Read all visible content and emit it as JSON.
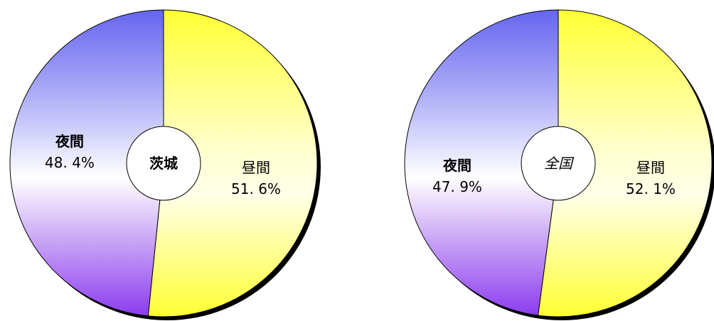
{
  "chart_data": [
    {
      "type": "pie",
      "center_label": "茨城",
      "center_label_style": "bold",
      "slices": [
        {
          "name": "昼間",
          "value": 51.6,
          "label": "51. 6%",
          "color_top": "#ffff40",
          "color_bottom": "#ffffd8"
        },
        {
          "name": "夜間",
          "value": 48.4,
          "label": "48. 4%",
          "color_top": "#6a6af2",
          "color_bottom": "#8a44ee"
        }
      ]
    },
    {
      "type": "pie",
      "center_label": "全国",
      "center_label_style": "italic",
      "slices": [
        {
          "name": "昼間",
          "value": 52.1,
          "label": "52. 1%",
          "color_top": "#ffff40",
          "color_bottom": "#ffffd8"
        },
        {
          "name": "夜間",
          "value": 47.9,
          "label": "47. 9%",
          "color_top": "#6a6af2",
          "color_bottom": "#8a44ee"
        }
      ]
    }
  ],
  "colors": {
    "day_yellow": "#ffff33",
    "day_pale": "#ffffe0",
    "night_blue": "#6565f0",
    "night_white": "#ffffff",
    "night_violet": "#8c3cf0",
    "shadow": "#000000"
  }
}
